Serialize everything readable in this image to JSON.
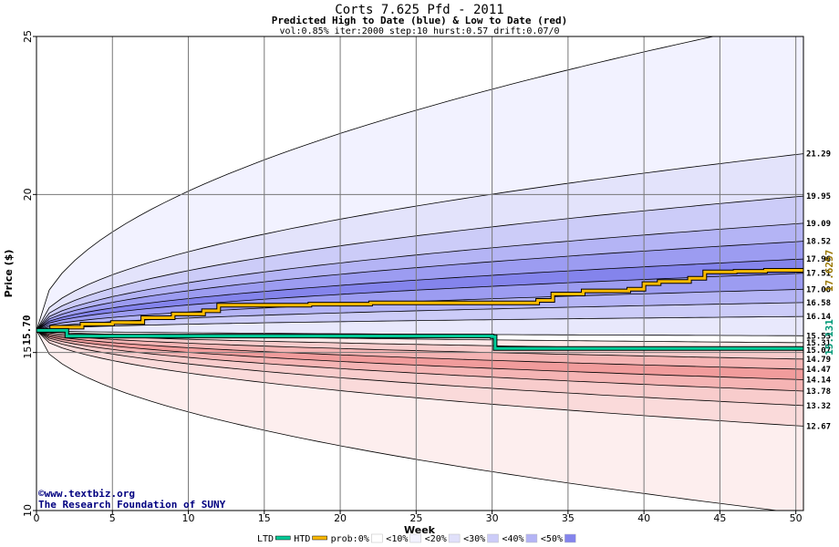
{
  "chart_data": {
    "type": "area",
    "title": "Corts 7.625 Pfd - 2011",
    "subtitle": "Predicted High to Date (blue) &  Low to Date (red)",
    "params": "vol:0.85% iter:2000 step:10 hurst:0.57 drift:0.07/0",
    "xlabel": "Week",
    "ylabel": "Price ($)",
    "xlim": [
      0,
      50.5
    ],
    "ylim": [
      10,
      25
    ],
    "x_ticks": [
      "0",
      "5",
      "10",
      "15",
      "20",
      "25",
      "30",
      "35",
      "40",
      "45",
      "50"
    ],
    "y_ticks": [
      "10",
      "15",
      "20",
      "25"
    ],
    "grid": true,
    "start_price": "15.70",
    "start_price_value": 15.7,
    "htd_last": "17.6257",
    "ltd_last": "15.131",
    "series": [
      {
        "name": "HTD",
        "color": "#ffbb00",
        "x": [
          0,
          1,
          3,
          5,
          7,
          9,
          11,
          12,
          18,
          22,
          33,
          34,
          36,
          39,
          40,
          41,
          43,
          44,
          46,
          48,
          50.5
        ],
        "values": [
          15.7,
          15.8,
          15.9,
          15.95,
          16.1,
          16.22,
          16.32,
          16.5,
          16.53,
          16.57,
          16.65,
          16.85,
          16.95,
          17.0,
          17.18,
          17.25,
          17.35,
          17.55,
          17.57,
          17.6,
          17.6257
        ]
      },
      {
        "name": "LTD",
        "color": "#00cc99",
        "x": [
          0,
          2,
          30,
          30.2,
          50.5
        ],
        "values": [
          15.7,
          15.52,
          15.5,
          15.13,
          15.131
        ]
      }
    ],
    "right_labels": [
      "21.29",
      "19.95",
      "19.09",
      "18.52",
      "17.96",
      "17.51",
      "17.00",
      "16.58",
      "16.14",
      "15.53",
      "15.31",
      "15.07",
      "14.79",
      "14.47",
      "14.14",
      "13.78",
      "13.32",
      "12.67"
    ],
    "right_values": [
      21.29,
      19.95,
      19.09,
      18.52,
      17.96,
      17.51,
      17.0,
      16.58,
      16.14,
      15.53,
      15.31,
      15.07,
      14.79,
      14.47,
      14.14,
      13.78,
      13.32,
      12.67
    ],
    "percentile_bands_upper": [
      25.6,
      21.29,
      19.95,
      19.09,
      18.52,
      17.96,
      17.51,
      17.0,
      16.58,
      16.14,
      15.53
    ],
    "percentile_bands_lower": [
      15.31,
      15.07,
      14.79,
      14.47,
      14.14,
      13.78,
      13.32,
      12.67,
      9.9
    ],
    "band_colors_upper": [
      "#f2f2ff",
      "#e3e3fb",
      "#ccccf8",
      "#b4b4f5",
      "#9c9cf1",
      "#8484ec",
      "#9c9cf1",
      "#b4b4f5",
      "#ccccf8",
      "#e8e8fc"
    ],
    "band_colors_lower": [
      "#fce8e8",
      "#f8cccc",
      "#f5b4b4",
      "#f19c9c",
      "#f5b4b4",
      "#f8cccc",
      "#fadada",
      "#fdeeee"
    ],
    "legend": [
      {
        "label": "LTD",
        "color": "#00cc99",
        "kind": "line"
      },
      {
        "label": "HTD",
        "color": "#ffbb00",
        "kind": "line"
      },
      {
        "label": "prob:0%",
        "color": "#ffffff",
        "kind": "box"
      },
      {
        "label": "<10%",
        "color": "#f2f2ff",
        "kind": "box"
      },
      {
        "label": "<20%",
        "color": "#e0e0fa",
        "kind": "box"
      },
      {
        "label": "<30%",
        "color": "#ccccf8",
        "kind": "box"
      },
      {
        "label": "<40%",
        "color": "#b4b4f5",
        "kind": "box"
      },
      {
        "label": "<50%",
        "color": "#8484ec",
        "kind": "box"
      }
    ]
  },
  "footer": {
    "copyright": "©www.textbiz.org",
    "org": "The Research Foundation of SUNY"
  }
}
